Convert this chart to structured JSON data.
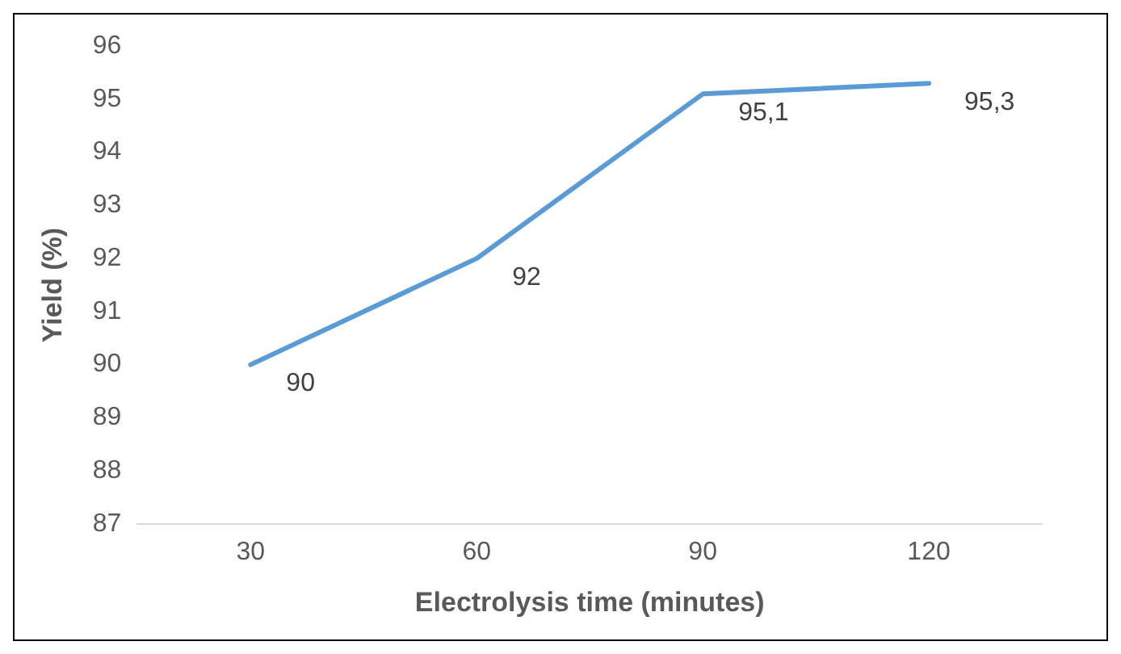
{
  "chart_data": {
    "type": "line",
    "xlabel": "Electrolysis time (minutes)",
    "ylabel": "Yield (%)",
    "categories": [
      "30",
      "60",
      "90",
      "120"
    ],
    "series": [
      {
        "color": "#5b9bd5",
        "values": [
          90,
          92,
          95.1,
          95.3
        ],
        "value_labels": [
          "90",
          "92",
          "95,1",
          "95,3"
        ]
      }
    ],
    "ylim": [
      87,
      96
    ],
    "yticks": [
      87,
      88,
      89,
      90,
      91,
      92,
      93,
      94,
      95,
      96
    ],
    "grid": false,
    "legend": false,
    "marker": "none",
    "line_style": "solid"
  }
}
